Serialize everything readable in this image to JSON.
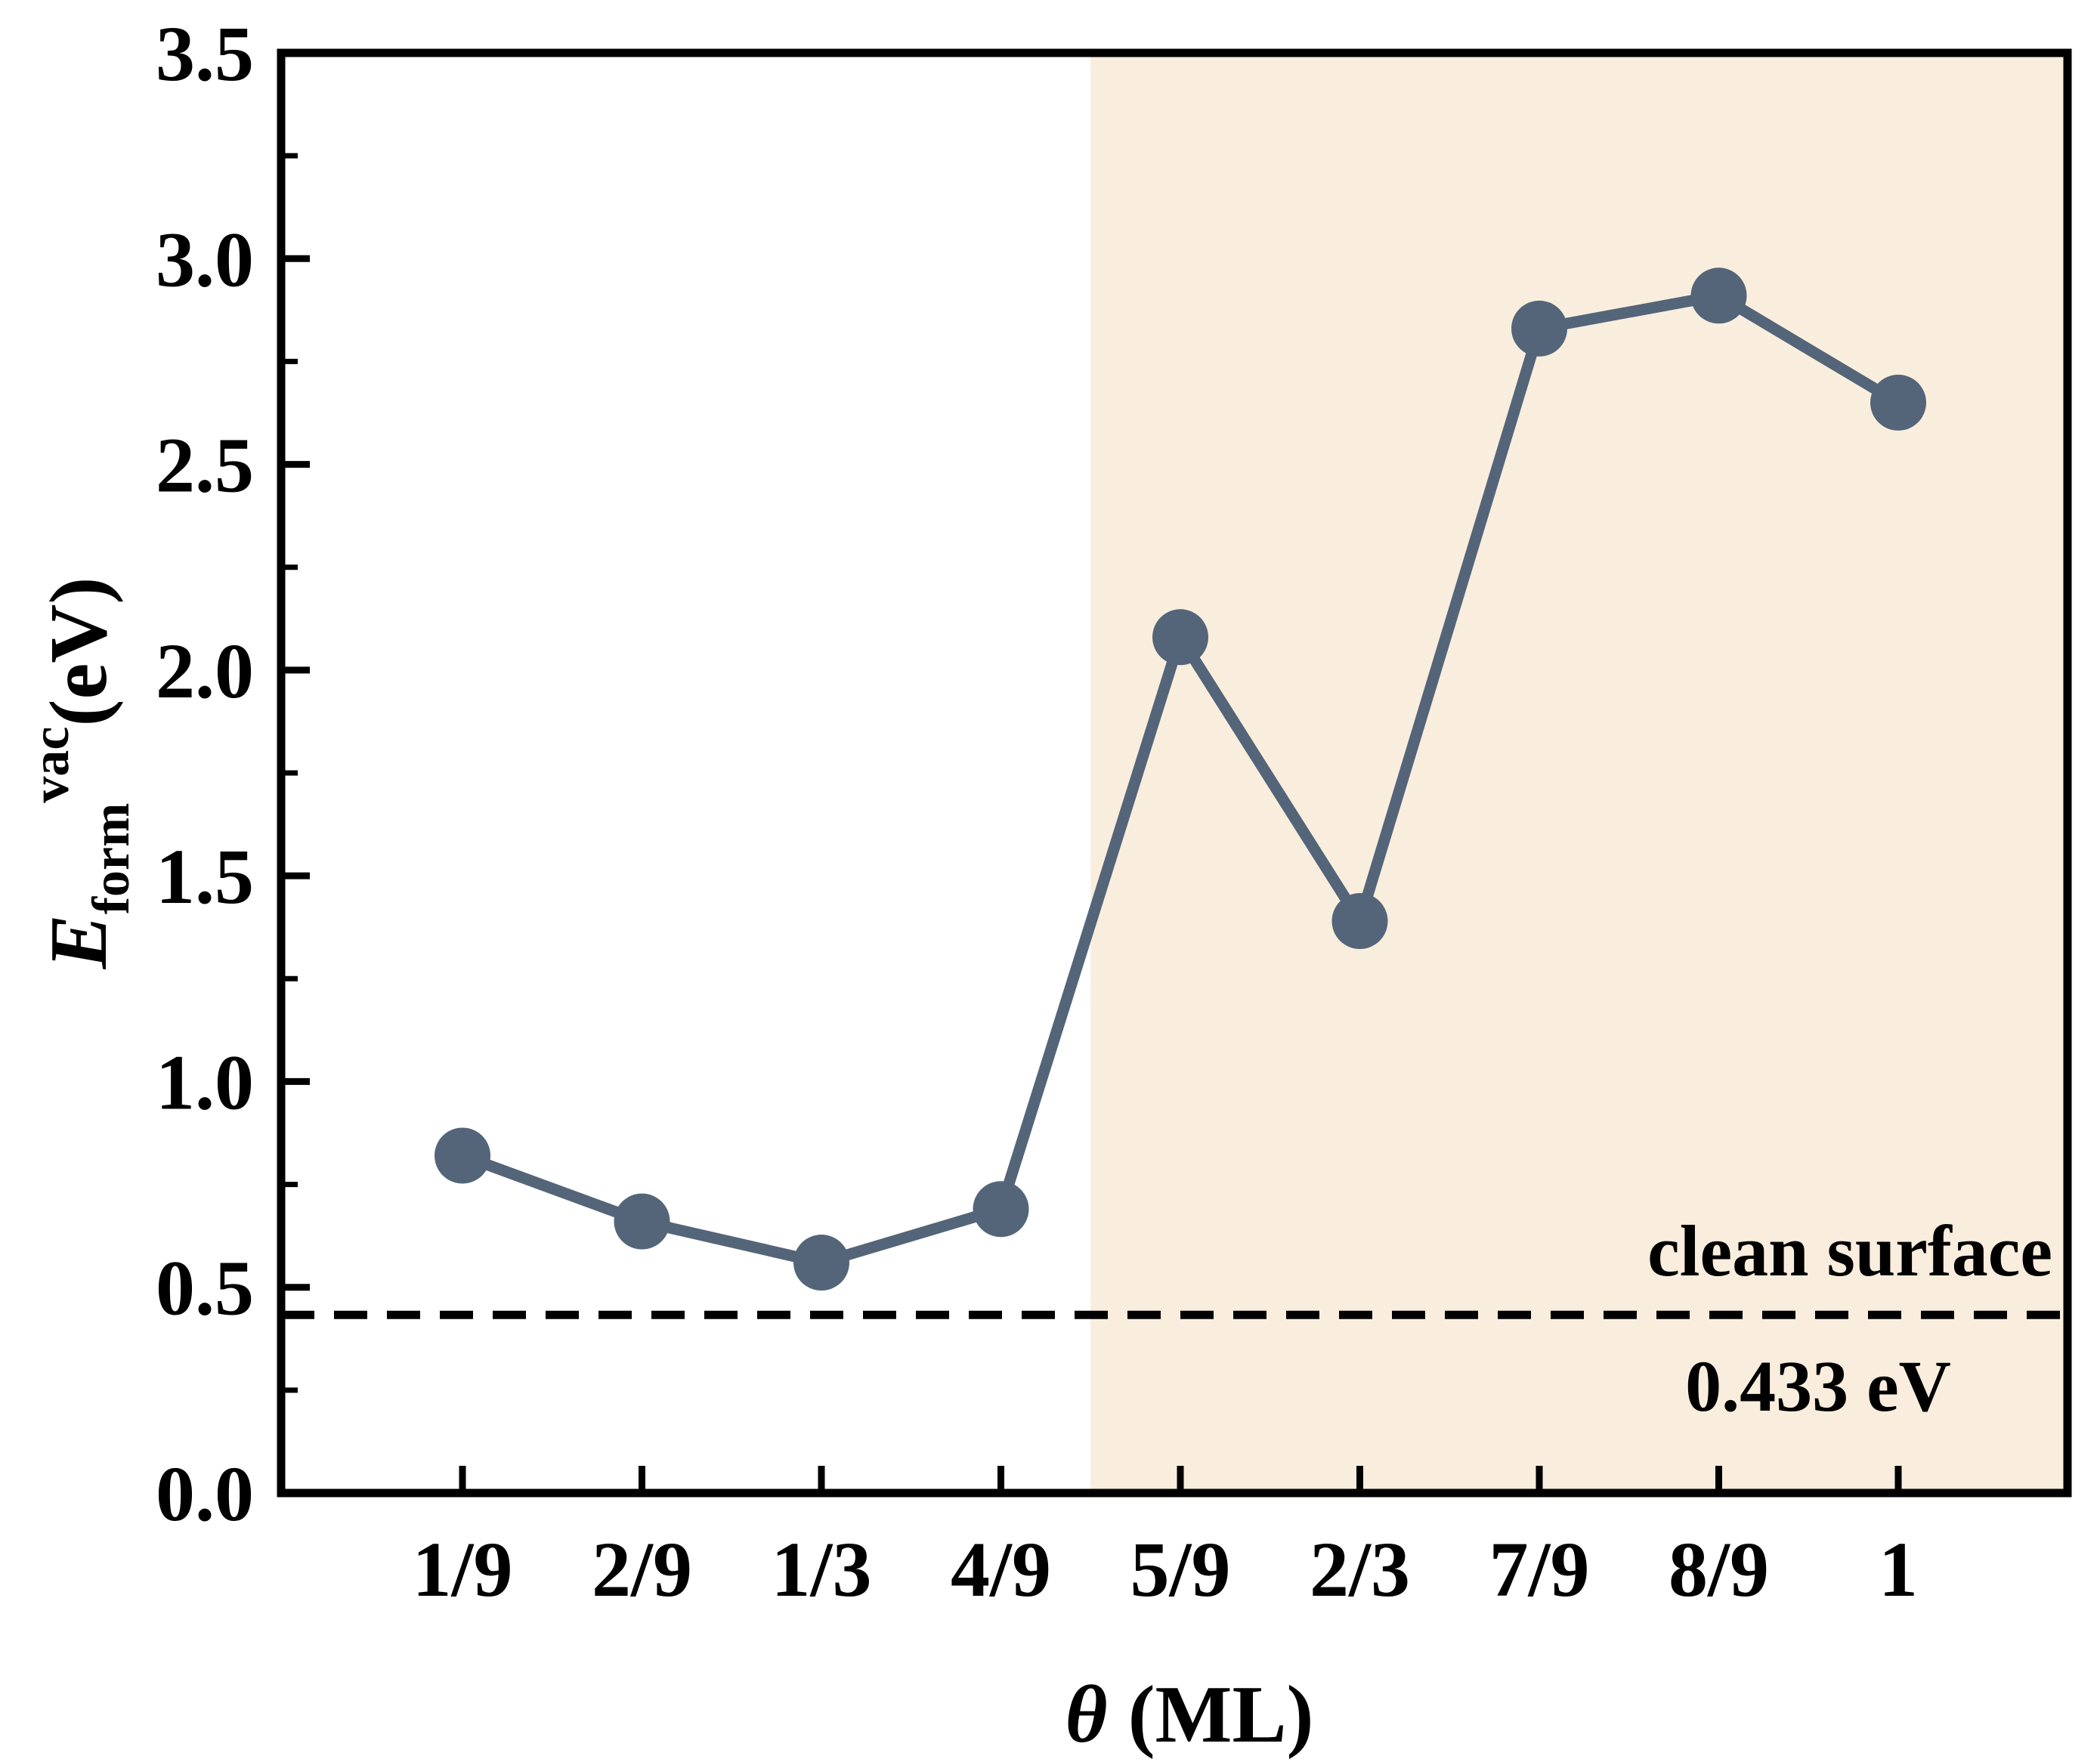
{
  "chart_data": {
    "type": "line",
    "title": "",
    "xlabel": "θ (ML)",
    "ylabel": {
      "main": "E",
      "superscript": "vac",
      "subscript": "form",
      "unit": "(eV)"
    },
    "categories": [
      "1/9",
      "2/9",
      "1/3",
      "4/9",
      "5/9",
      "2/3",
      "7/9",
      "8/9",
      "1"
    ],
    "series": [
      {
        "name": "E_form^vac",
        "values": [
          0.82,
          0.66,
          0.56,
          0.69,
          2.08,
          1.39,
          2.83,
          2.91,
          2.65
        ],
        "color": "#546579"
      }
    ],
    "ylim": [
      0.0,
      3.5
    ],
    "yticks": [
      0.0,
      0.5,
      1.0,
      1.5,
      2.0,
      2.5,
      3.0,
      3.5
    ],
    "ytick_labels": [
      "0.0",
      "0.5",
      "1.0",
      "1.5",
      "2.0",
      "2.5",
      "3.0",
      "3.5"
    ],
    "reference_line": {
      "value": 0.433,
      "style": "dashed",
      "color": "#000000",
      "label_above": "clean surface",
      "label_below": "0.433 eV"
    },
    "shaded_region": {
      "from_category_index": 3.5,
      "to": "end",
      "color": "#f9eddd"
    },
    "grid": false
  }
}
